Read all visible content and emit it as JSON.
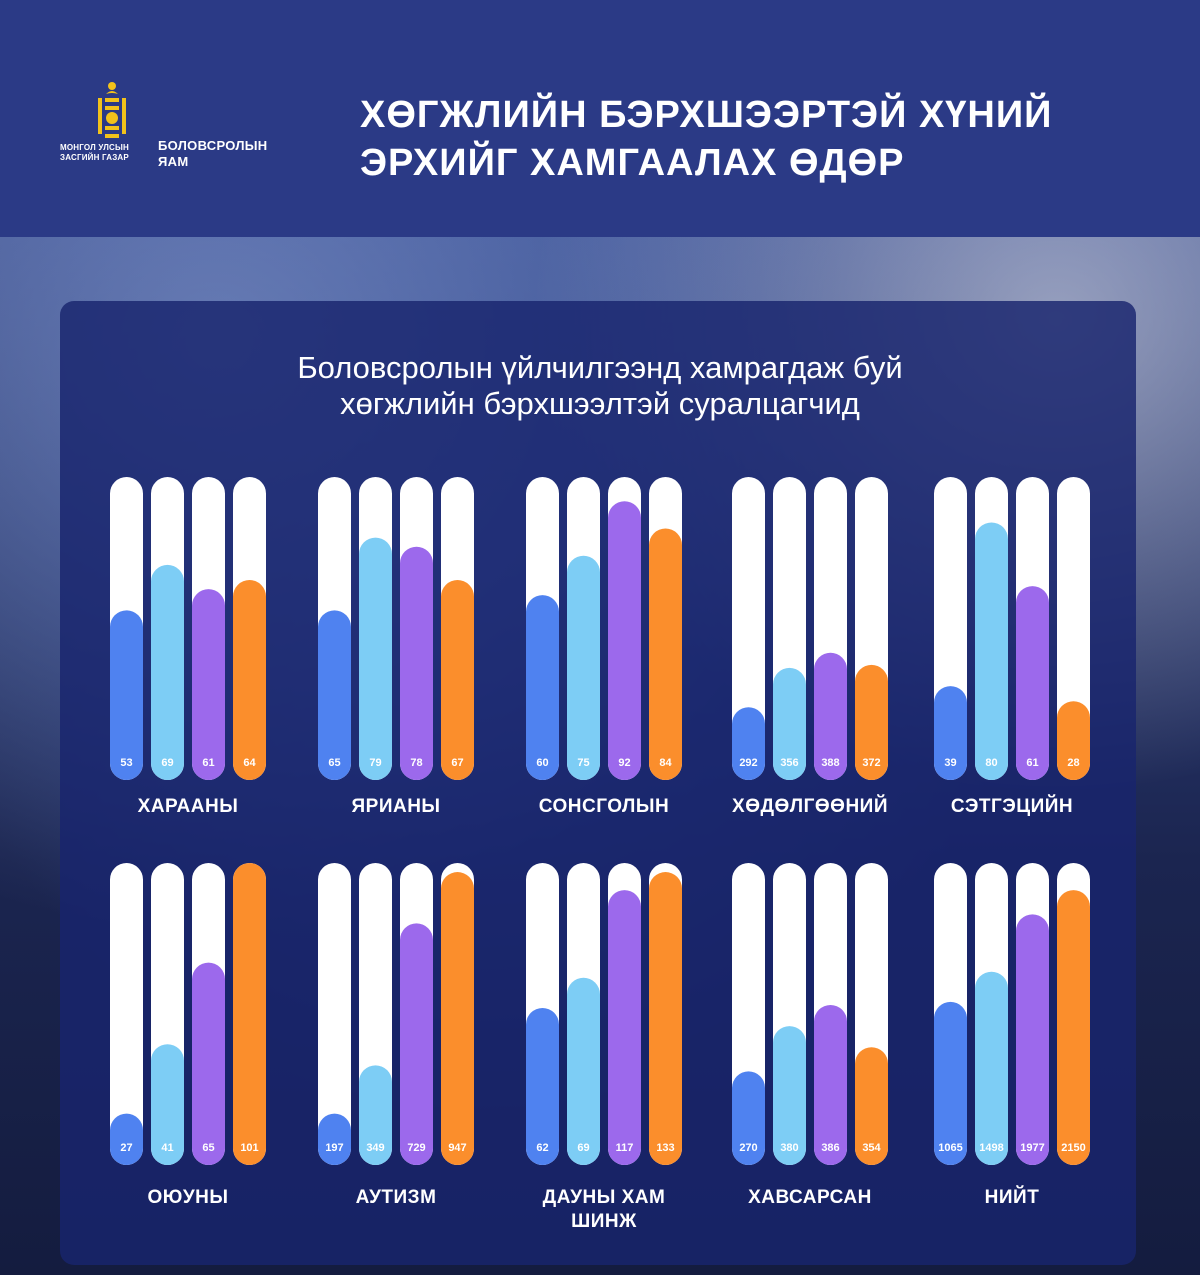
{
  "header": {
    "logo_line1": "МОНГОЛ УЛСЫН",
    "logo_line2": "ЗАСГИЙН ГАЗАР",
    "ministry_line1": "БОЛОВСРОЛЫН",
    "ministry_line2": "ЯАМ",
    "headline_line1": "ХӨГЖЛИЙН БЭРХШЭЭРТЭЙ ХҮНИЙ",
    "headline_line2": "ЭРХИЙГ ХАМГААЛАХ ӨДӨР"
  },
  "panel": {
    "title_line1": "Боловсролын үйлчилгээнд хамрагдаж буй",
    "title_line2": "хөгжлийн бэрхшээлтэй суралцагчид"
  },
  "colors": {
    "series": [
      "#4f82f0",
      "#7dcdf5",
      "#9c69ec",
      "#fb8e2c"
    ],
    "track": "#ffffff",
    "header_bg": "#2b3a86",
    "panel_bg": "#18246e"
  },
  "chart_data": {
    "type": "bar",
    "title": "Боловсролын үйлчилгээнд хамрагдаж буй хөгжлийн бэрхшээлтэй суралцагчид",
    "groups": [
      {
        "label": [
          "ХАРААНЫ"
        ],
        "values": [
          53,
          69,
          61,
          64
        ],
        "fill": [
          0.56,
          0.71,
          0.63,
          0.66
        ]
      },
      {
        "label": [
          "ЯРИАНЫ"
        ],
        "values": [
          65,
          79,
          78,
          67
        ],
        "fill": [
          0.56,
          0.8,
          0.77,
          0.66
        ]
      },
      {
        "label": [
          "СОНСГОЛЫН"
        ],
        "values": [
          60,
          75,
          92,
          84
        ],
        "fill": [
          0.61,
          0.74,
          0.92,
          0.83
        ]
      },
      {
        "label": [
          "ХӨДӨЛГӨӨНИЙ"
        ],
        "values": [
          292,
          356,
          388,
          372
        ],
        "fill": [
          0.24,
          0.37,
          0.42,
          0.38
        ]
      },
      {
        "label": [
          "СЭТГЭЦИЙН"
        ],
        "values": [
          39,
          80,
          61,
          28
        ],
        "fill": [
          0.31,
          0.85,
          0.64,
          0.26
        ]
      },
      {
        "label": [
          "ОЮУНЫ"
        ],
        "values": [
          27,
          41,
          65,
          101
        ],
        "fill": [
          0.17,
          0.4,
          0.67,
          1.0
        ]
      },
      {
        "label": [
          "АУТИЗМ"
        ],
        "values": [
          197,
          349,
          729,
          947
        ],
        "fill": [
          0.17,
          0.33,
          0.8,
          0.97
        ]
      },
      {
        "label": [
          "ДАУНЫ ХАМ",
          "ШИНЖ"
        ],
        "values": [
          62,
          69,
          117,
          133
        ],
        "fill": [
          0.52,
          0.62,
          0.91,
          0.97
        ]
      },
      {
        "label": [
          "ХАВСАРСАН"
        ],
        "values": [
          270,
          380,
          386,
          354
        ],
        "fill": [
          0.31,
          0.46,
          0.53,
          0.39
        ]
      },
      {
        "label": [
          "НИЙТ"
        ],
        "values": [
          1065,
          1498,
          1977,
          2150
        ],
        "fill": [
          0.54,
          0.64,
          0.83,
          0.91
        ]
      }
    ]
  }
}
